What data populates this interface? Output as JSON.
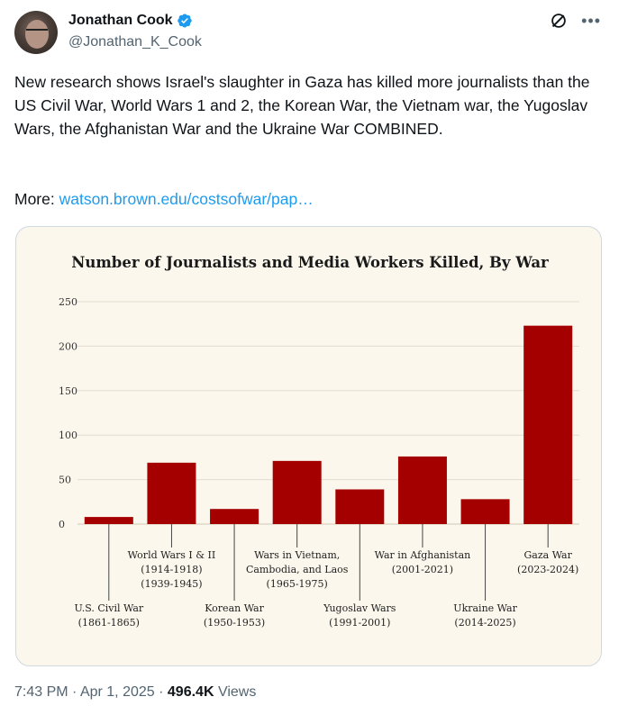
{
  "author": {
    "display_name": "Jonathan Cook",
    "handle": "@Jonathan_K_Cook"
  },
  "icons": {
    "verified": "verified-badge-icon",
    "grok": "grok-icon",
    "more": "more-icon",
    "verified_color": "#1d9bf0"
  },
  "tweet": {
    "text": "New research shows Israel's slaughter in Gaza has killed more journalists than the US Civil War, World Wars 1 and 2, the Korean War, the Vietnam war, the Yugoslav Wars, the Afghanistan War and the Ukraine War COMBINED.",
    "more_label": "More:",
    "link_text": "watson.brown.edu/costsofwar/pap…"
  },
  "meta": {
    "time": "7:43 PM",
    "sep1": "·",
    "date": "Apr 1, 2025",
    "sep2": "·",
    "views_count": "496.4K",
    "views_label": "Views"
  },
  "chart_data": {
    "type": "bar",
    "title": "Number of Journalists and Media Workers Killed, By War",
    "xlabel": "",
    "ylabel": "",
    "ylim": [
      0,
      250
    ],
    "yticks": [
      0,
      50,
      100,
      150,
      200,
      250
    ],
    "grid": true,
    "bar_color": "#a50000",
    "categories": [
      [
        "U.S. Civil War",
        "(1861-1865)"
      ],
      [
        "World Wars I & II",
        "(1914-1918)",
        "(1939-1945)"
      ],
      [
        "Korean War",
        "(1950-1953)"
      ],
      [
        "Wars in Vietnam,",
        "Cambodia, and Laos",
        "(1965-1975)"
      ],
      [
        "Yugoslav Wars",
        "(1991-2001)"
      ],
      [
        "War in Afghanistan",
        "(2001-2021)"
      ],
      [
        "Ukraine War",
        "(2014-2025)"
      ],
      [
        "Gaza War",
        "(2023-2024)"
      ]
    ],
    "label_level": [
      "low",
      "high",
      "low",
      "high",
      "low",
      "high",
      "low",
      "high"
    ],
    "values": [
      8,
      69,
      17,
      71,
      39,
      76,
      28,
      223
    ]
  }
}
